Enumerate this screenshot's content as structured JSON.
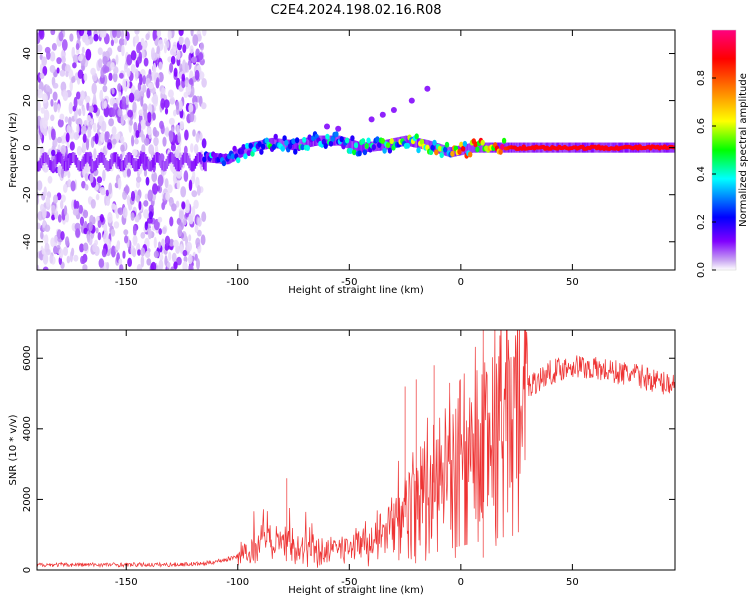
{
  "figure_title": "C2E4.2024.198.02.16.R08",
  "colors": {
    "snr_line": "#ee3333",
    "frame": "#000000"
  },
  "chart_data": [
    {
      "type": "heatmap",
      "title": "C2E4.2024.198.02.16.R08",
      "xlabel": "Height of straight line (km)",
      "ylabel": "Frequency (Hz)",
      "xlim": [
        -190,
        96
      ],
      "ylim": [
        -52,
        50
      ],
      "xticks": [
        "-150",
        "-100",
        "-50",
        "0",
        "50"
      ],
      "yticks": [
        "-40",
        "-20",
        "0",
        "20",
        "40"
      ],
      "colorbar": {
        "label": "Normalized spectral amplitude",
        "range": [
          0,
          1
        ],
        "ticks": [
          "0.0",
          "0.2",
          "0.4",
          "0.6",
          "0.8"
        ],
        "colormap": [
          "#ffffff",
          "#c9a6f2",
          "#8000ff",
          "#0000ff",
          "#00ffff",
          "#00ff00",
          "#ffff00",
          "#ff8000",
          "#ff0000",
          "#ff0080"
        ]
      },
      "ridge": [
        {
          "x": -115,
          "freq": -4,
          "amp": 0.35
        },
        {
          "x": -105,
          "freq": -5,
          "amp": 0.3
        },
        {
          "x": -95,
          "freq": 0,
          "amp": 0.35
        },
        {
          "x": -85,
          "freq": 2,
          "amp": 0.4
        },
        {
          "x": -75,
          "freq": 1,
          "amp": 0.35
        },
        {
          "x": -65,
          "freq": 3,
          "amp": 0.4
        },
        {
          "x": -55,
          "freq": 3,
          "amp": 0.35
        },
        {
          "x": -45,
          "freq": 0,
          "amp": 0.4
        },
        {
          "x": -35,
          "freq": 1,
          "amp": 0.45
        },
        {
          "x": -25,
          "freq": 3,
          "amp": 0.5
        },
        {
          "x": -15,
          "freq": 1,
          "amp": 0.55
        },
        {
          "x": -5,
          "freq": -2,
          "amp": 0.6
        },
        {
          "x": 5,
          "freq": 0,
          "amp": 0.7
        },
        {
          "x": 15,
          "freq": 0,
          "amp": 0.8
        },
        {
          "x": 25,
          "freq": 0,
          "amp": 0.9
        },
        {
          "x": 50,
          "freq": 0,
          "amp": 0.9
        },
        {
          "x": 75,
          "freq": 0,
          "amp": 0.9
        },
        {
          "x": 96,
          "freq": 0,
          "amp": 0.9
        }
      ],
      "noise_region": {
        "x_range": [
          -190,
          -115
        ],
        "freq_band": [
          -52,
          50
        ],
        "level": 0.2
      }
    },
    {
      "type": "line",
      "xlabel": "Height of straight line (km)",
      "ylabel": "SNR (10 * v/v)",
      "xlim": [
        -190,
        96
      ],
      "ylim": [
        0,
        6800
      ],
      "xticks": [
        "-150",
        "-100",
        "-50",
        "0",
        "50"
      ],
      "yticks": [
        "0",
        "2000",
        "4000",
        "6000"
      ],
      "series": [
        {
          "name": "SNR",
          "x": [
            -190,
            -170,
            -150,
            -130,
            -115,
            -105,
            -95,
            -90,
            -85,
            -80,
            -75,
            -70,
            -60,
            -50,
            -40,
            -35,
            -30,
            -25,
            -20,
            -15,
            -10,
            -5,
            0,
            5,
            10,
            15,
            20,
            25,
            30,
            40,
            50,
            60,
            70,
            80,
            90,
            96
          ],
          "y": [
            150,
            150,
            150,
            150,
            180,
            300,
            500,
            650,
            700,
            800,
            700,
            600,
            500,
            700,
            800,
            1000,
            1300,
            1500,
            2000,
            2300,
            2600,
            3000,
            3400,
            3700,
            4200,
            4400,
            4700,
            4900,
            5200,
            5600,
            5800,
            5700,
            5600,
            5500,
            5300,
            5300
          ]
        }
      ],
      "spikes": [
        {
          "x": -78,
          "y": 2600
        },
        {
          "x": -25,
          "y": 5200
        },
        {
          "x": -20,
          "y": 5400
        },
        {
          "x": -12,
          "y": 5800
        },
        {
          "x": -5,
          "y": 5300
        },
        {
          "x": 10,
          "y": 6800
        },
        {
          "x": 10,
          "y": 350
        }
      ]
    }
  ]
}
